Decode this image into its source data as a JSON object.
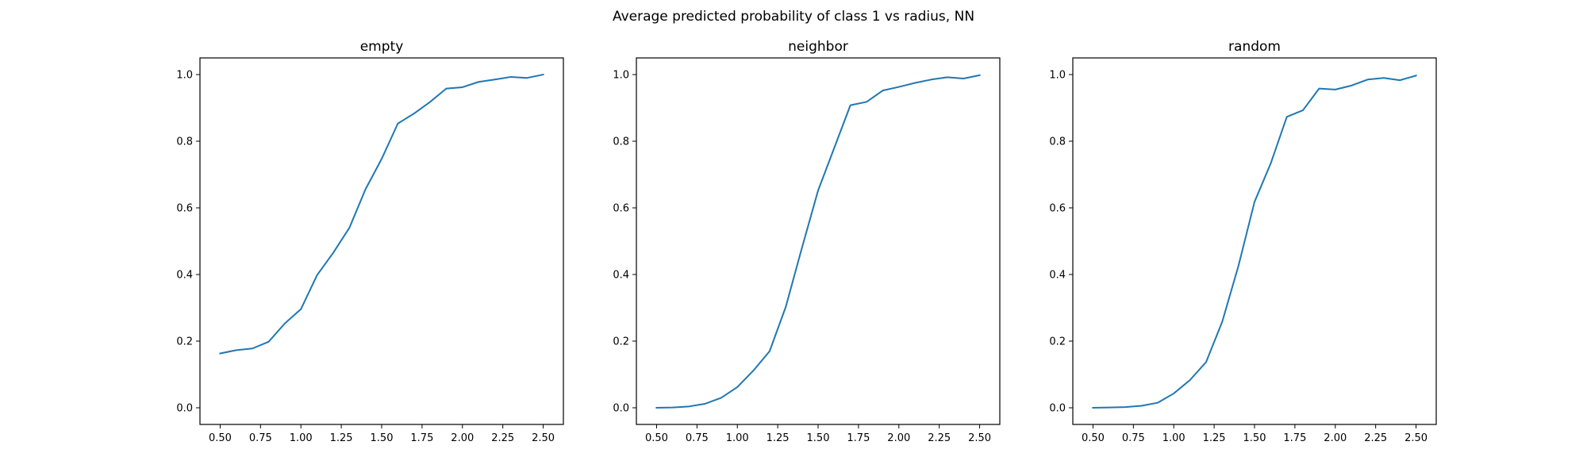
{
  "figure": {
    "title": "Average predicted probability of class 1 vs radius, NN"
  },
  "chart_data": [
    {
      "type": "line",
      "title": "empty",
      "xlabel": "",
      "ylabel": "",
      "xlim": [
        0.375,
        2.625
      ],
      "ylim": [
        -0.05,
        1.05
      ],
      "xticks": [
        0.5,
        0.75,
        1.0,
        1.25,
        1.5,
        1.75,
        2.0,
        2.25,
        2.5
      ],
      "xtick_labels": [
        "0.50",
        "0.75",
        "1.00",
        "1.25",
        "1.50",
        "1.75",
        "2.00",
        "2.25",
        "2.50"
      ],
      "yticks": [
        0.0,
        0.2,
        0.4,
        0.6,
        0.8,
        1.0
      ],
      "ytick_labels": [
        "0.0",
        "0.2",
        "0.4",
        "0.6",
        "0.8",
        "1.0"
      ],
      "grid": false,
      "color": "#1f77b4",
      "x": [
        0.5,
        0.6,
        0.7,
        0.8,
        0.9,
        1.0,
        1.1,
        1.2,
        1.3,
        1.4,
        1.5,
        1.6,
        1.7,
        1.8,
        1.9,
        2.0,
        2.1,
        2.2,
        2.3,
        2.4,
        2.5
      ],
      "y": [
        0.163,
        0.173,
        0.178,
        0.198,
        0.253,
        0.296,
        0.398,
        0.465,
        0.54,
        0.656,
        0.747,
        0.853,
        0.883,
        0.918,
        0.958,
        0.962,
        0.978,
        0.985,
        0.993,
        0.99,
        1.0
      ]
    },
    {
      "type": "line",
      "title": "neighbor",
      "xlabel": "",
      "ylabel": "",
      "xlim": [
        0.375,
        2.625
      ],
      "ylim": [
        -0.05,
        1.05
      ],
      "xticks": [
        0.5,
        0.75,
        1.0,
        1.25,
        1.5,
        1.75,
        2.0,
        2.25,
        2.5
      ],
      "xtick_labels": [
        "0.50",
        "0.75",
        "1.00",
        "1.25",
        "1.50",
        "1.75",
        "2.00",
        "2.25",
        "2.50"
      ],
      "yticks": [
        0.0,
        0.2,
        0.4,
        0.6,
        0.8,
        1.0
      ],
      "ytick_labels": [
        "0.0",
        "0.2",
        "0.4",
        "0.6",
        "0.8",
        "1.0"
      ],
      "grid": false,
      "color": "#1f77b4",
      "x": [
        0.5,
        0.6,
        0.7,
        0.8,
        0.9,
        1.0,
        1.1,
        1.2,
        1.3,
        1.4,
        1.5,
        1.6,
        1.7,
        1.8,
        1.9,
        2.0,
        2.1,
        2.2,
        2.3,
        2.4,
        2.5
      ],
      "y": [
        0.0,
        0.001,
        0.004,
        0.012,
        0.03,
        0.062,
        0.112,
        0.17,
        0.303,
        0.48,
        0.652,
        0.78,
        0.908,
        0.918,
        0.952,
        0.963,
        0.975,
        0.985,
        0.992,
        0.988,
        0.998
      ]
    },
    {
      "type": "line",
      "title": "random",
      "xlabel": "",
      "ylabel": "",
      "xlim": [
        0.375,
        2.625
      ],
      "ylim": [
        -0.05,
        1.05
      ],
      "xticks": [
        0.5,
        0.75,
        1.0,
        1.25,
        1.5,
        1.75,
        2.0,
        2.25,
        2.5
      ],
      "xtick_labels": [
        "0.50",
        "0.75",
        "1.00",
        "1.25",
        "1.50",
        "1.75",
        "2.00",
        "2.25",
        "2.50"
      ],
      "yticks": [
        0.0,
        0.2,
        0.4,
        0.6,
        0.8,
        1.0
      ],
      "ytick_labels": [
        "0.0",
        "0.2",
        "0.4",
        "0.6",
        "0.8",
        "1.0"
      ],
      "grid": false,
      "color": "#1f77b4",
      "x": [
        0.5,
        0.6,
        0.7,
        0.8,
        0.9,
        1.0,
        1.1,
        1.2,
        1.3,
        1.4,
        1.5,
        1.6,
        1.7,
        1.8,
        1.9,
        2.0,
        2.1,
        2.2,
        2.3,
        2.4,
        2.5
      ],
      "y": [
        0.0,
        0.001,
        0.002,
        0.006,
        0.015,
        0.043,
        0.083,
        0.137,
        0.258,
        0.425,
        0.618,
        0.733,
        0.873,
        0.893,
        0.958,
        0.955,
        0.967,
        0.985,
        0.99,
        0.983,
        0.997
      ]
    }
  ]
}
